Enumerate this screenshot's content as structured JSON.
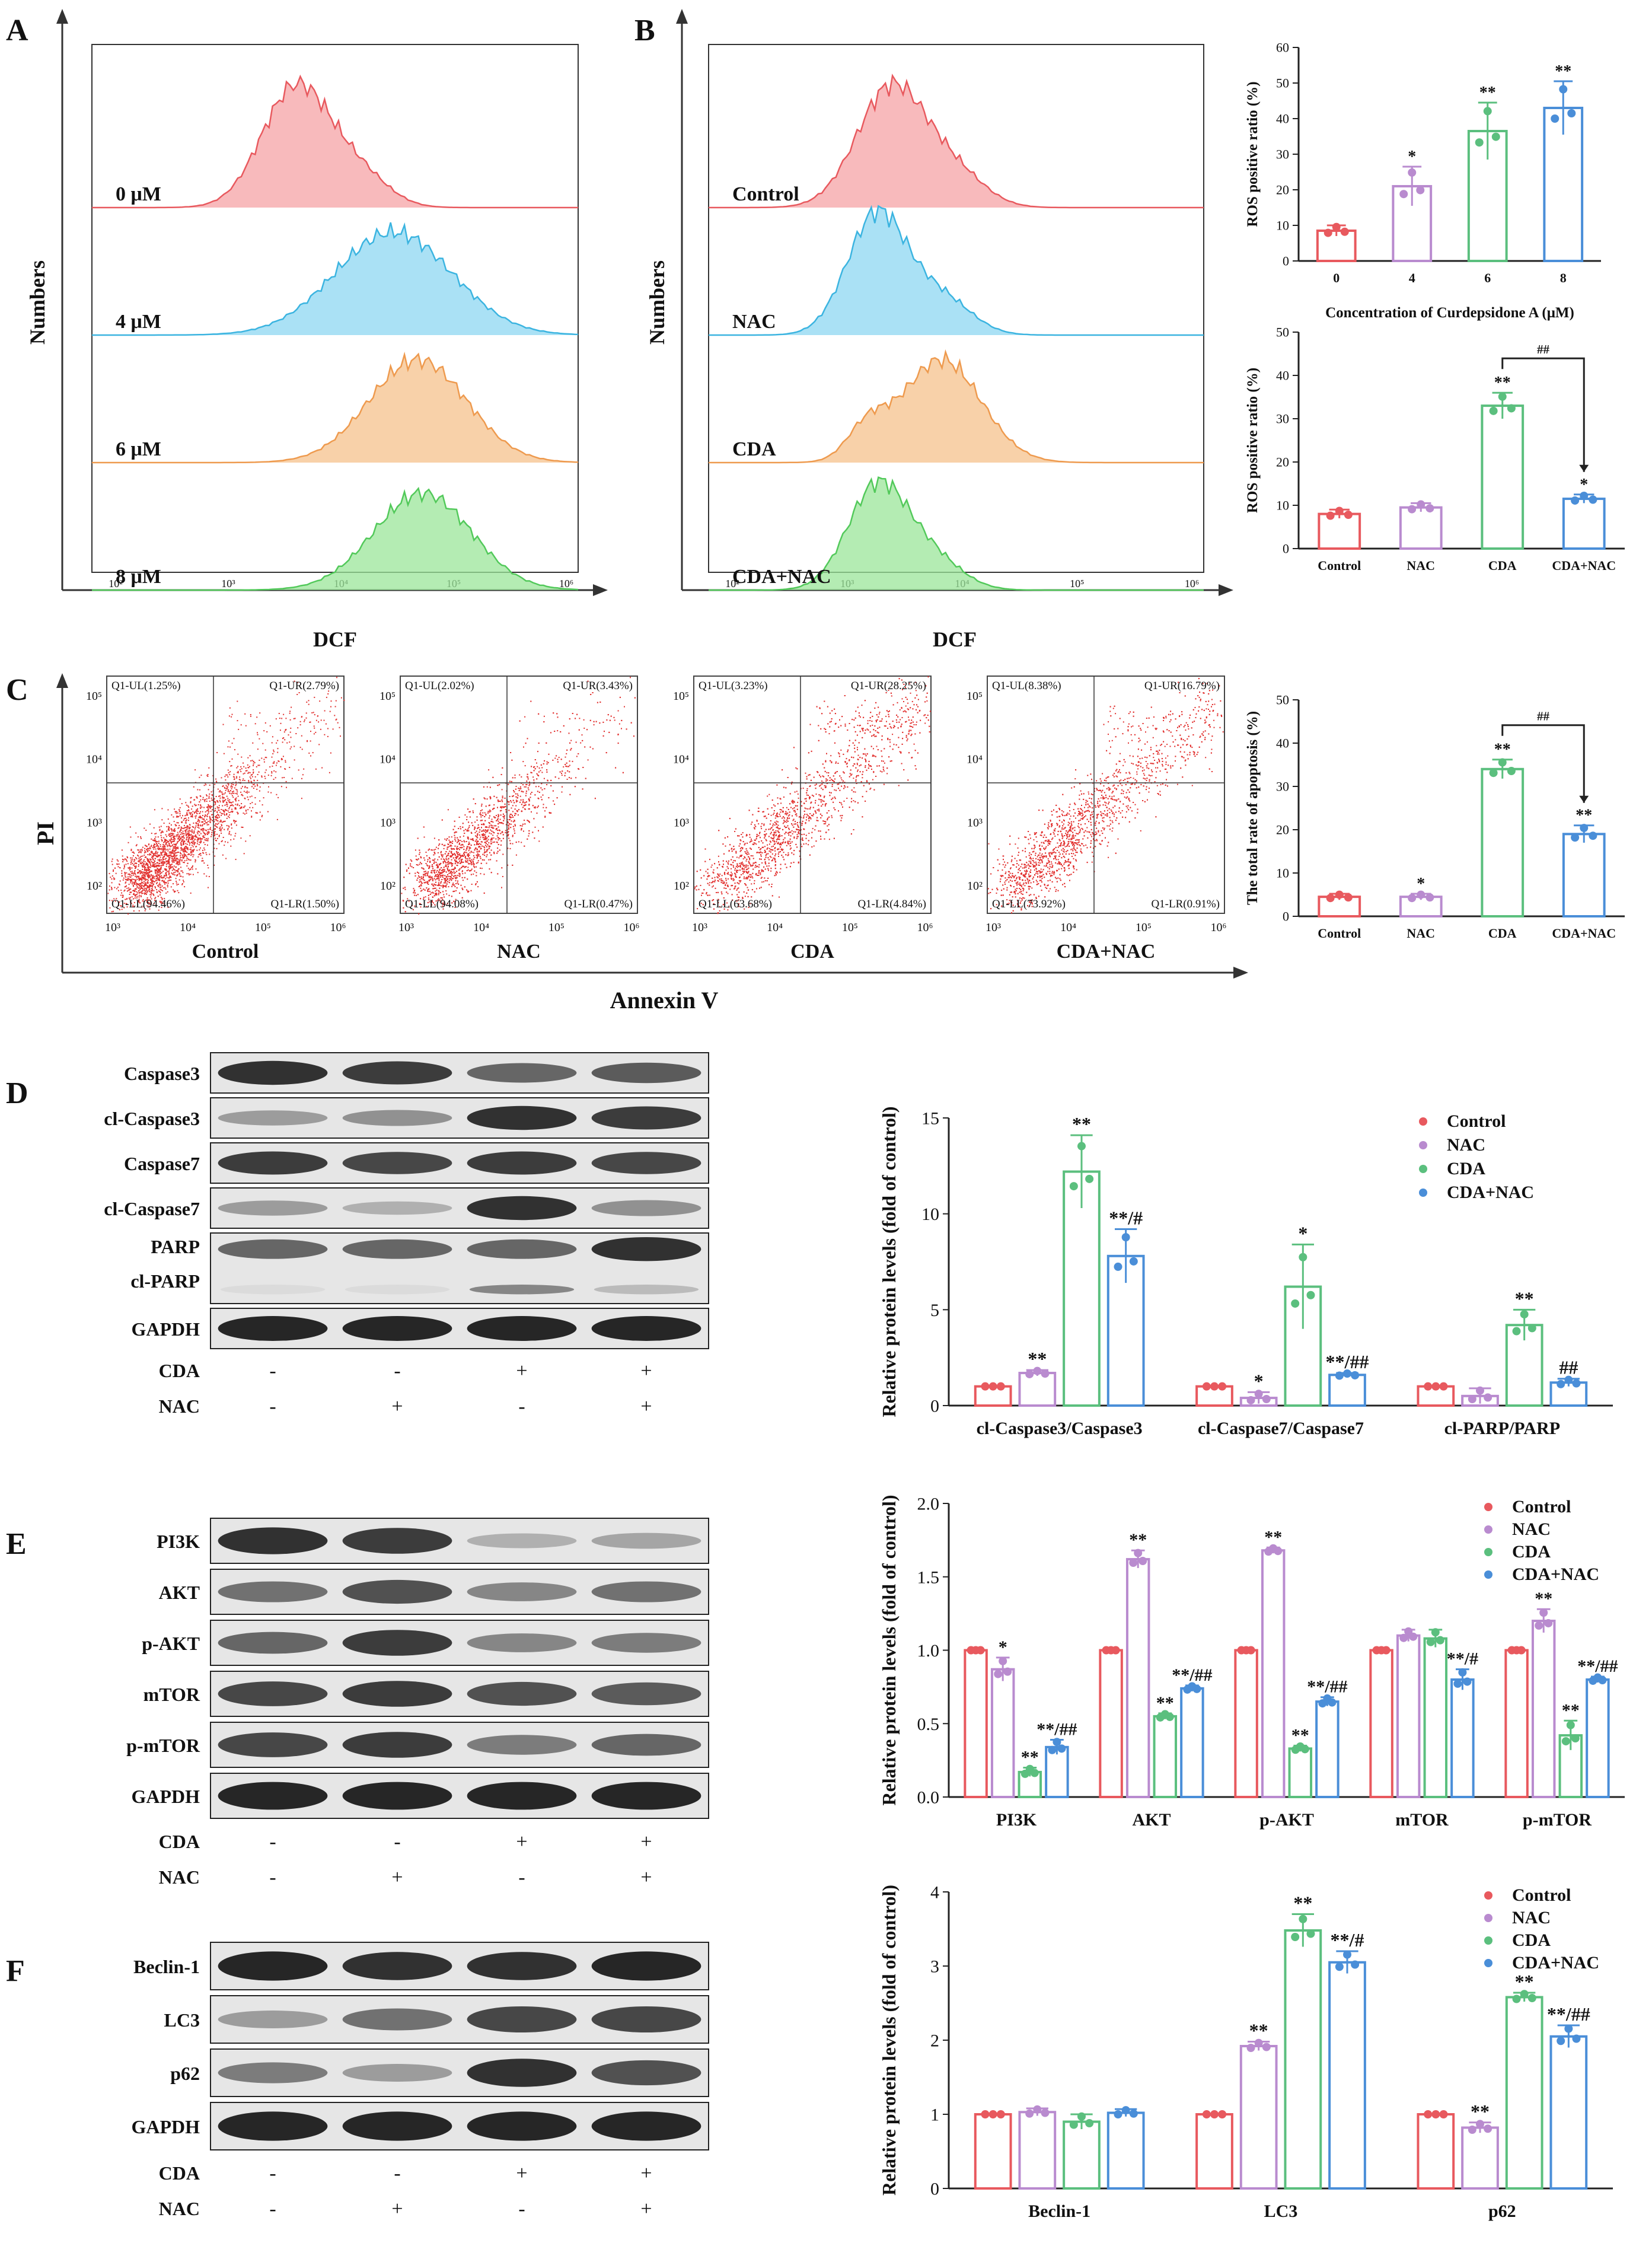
{
  "colors": {
    "control": "#E8595E",
    "nac": "#B98BCF",
    "cda": "#5BBF7E",
    "cdanac": "#4A8ED8",
    "hist": [
      "#F5A3A6",
      "#8ED7F2",
      "#F6C28C",
      "#9BE59A"
    ],
    "histLine": [
      "#E8595E",
      "#3BB4E0",
      "#EE9A4E",
      "#52C95A"
    ],
    "dots": "#E2312F"
  },
  "panels": {
    "A": "A",
    "B": "B",
    "C": "C",
    "D": "D",
    "E": "E",
    "F": "F"
  },
  "histA": {
    "ylabel": "Numbers",
    "xlabel": "DCF",
    "labels": [
      "0 μM",
      "4 μM",
      "6 μM",
      "8 μM"
    ],
    "ticks": [
      "10²",
      "10³",
      "10⁴",
      "10⁵",
      "10⁶"
    ]
  },
  "histB": {
    "ylabel": "Numbers",
    "xlabel": "DCF",
    "labels": [
      "Control",
      "NAC",
      "CDA",
      "CDA+NAC"
    ],
    "ticks": [
      "10²",
      "10³",
      "10⁴",
      "10⁵",
      "10⁶"
    ]
  },
  "flowC": {
    "ylabel": "PI",
    "xlabel": "Annexin V",
    "plots": [
      {
        "name": "Control",
        "ul": "Q1-UL(1.25%)",
        "ur": "Q1-UR(2.79%)",
        "ll": "Q1-LL(94.46%)",
        "lr": "Q1-LR(1.50%)"
      },
      {
        "name": "NAC",
        "ul": "Q1-UL(2.02%)",
        "ur": "Q1-UR(3.43%)",
        "ll": "Q1-LL(94.08%)",
        "lr": "Q1-LR(0.47%)"
      },
      {
        "name": "CDA",
        "ul": "Q1-UL(3.23%)",
        "ur": "Q1-UR(28.25%)",
        "ll": "Q1-LL(63.68%)",
        "lr": "Q1-LR(4.84%)"
      },
      {
        "name": "CDA+NAC",
        "ul": "Q1-UL(8.38%)",
        "ur": "Q1-UR(16.79%)",
        "ll": "Q1-LL(73.92%)",
        "lr": "Q1-LR(0.91%)"
      }
    ],
    "xticks": [
      "10³",
      "10⁴",
      "10⁵",
      "10⁶"
    ],
    "yticks": [
      "10²",
      "10³",
      "10⁴",
      "10⁵"
    ]
  },
  "blots": {
    "D": {
      "rows": [
        "Caspase3",
        "cl-Caspase3",
        "Caspase7",
        "cl-Caspase7",
        "PARP",
        "cl-PARP",
        "GAPDH"
      ],
      "cda": [
        "-",
        "-",
        "+",
        "+"
      ],
      "nac": [
        "-",
        "+",
        "-",
        "+"
      ]
    },
    "E": {
      "rows": [
        "PI3K",
        "AKT",
        "p-AKT",
        "mTOR",
        "p-mTOR",
        "GAPDH"
      ],
      "cda": [
        "-",
        "-",
        "+",
        "+"
      ],
      "nac": [
        "-",
        "+",
        "-",
        "+"
      ]
    },
    "F": {
      "rows": [
        "Beclin-1",
        "LC3",
        "p62",
        "GAPDH"
      ],
      "cda": [
        "-",
        "-",
        "+",
        "+"
      ],
      "nac": [
        "-",
        "+",
        "-",
        "+"
      ]
    },
    "cdaLabel": "CDA",
    "nacLabel": "NAC"
  },
  "chart_data": [
    {
      "id": "B1",
      "type": "bar",
      "ylabel": "ROS positive ratio (%)",
      "xlabel": "Concentration of Curdepsidone A (μM)",
      "categories": [
        "0",
        "4",
        "6",
        "8"
      ],
      "values": [
        8.5,
        21,
        36.5,
        43
      ],
      "errors": [
        1.5,
        5.5,
        8,
        7.5
      ],
      "stars": [
        "",
        "*",
        "**",
        "**"
      ],
      "ylim": [
        0,
        60
      ],
      "yticks": [
        "0",
        "10",
        "20",
        "30",
        "40",
        "50",
        "60"
      ]
    },
    {
      "id": "B2",
      "type": "bar",
      "ylabel": "ROS positive ratio (%)",
      "categories": [
        "Control",
        "NAC",
        "CDA",
        "CDA+NAC"
      ],
      "values": [
        8,
        9.5,
        33,
        11.5
      ],
      "errors": [
        1,
        1,
        3,
        1
      ],
      "stars": [
        "",
        "",
        "**",
        "*"
      ],
      "bracket": "##",
      "ylim": [
        0,
        50
      ],
      "yticks": [
        "0",
        "10",
        "20",
        "30",
        "40",
        "50"
      ]
    },
    {
      "id": "C1",
      "type": "bar",
      "ylabel": "The total rate of apoptosis (%)",
      "categories": [
        "Control",
        "NAC",
        "CDA",
        "CDA+NAC"
      ],
      "values": [
        4.5,
        4.5,
        34,
        19
      ],
      "errors": [
        0.7,
        0.7,
        2.2,
        2
      ],
      "stars": [
        "",
        "*",
        "**",
        "**"
      ],
      "bracket": "##",
      "ylim": [
        0,
        50
      ],
      "yticks": [
        "0",
        "10",
        "20",
        "30",
        "40",
        "50"
      ]
    },
    {
      "id": "D1",
      "type": "bar",
      "ylabel": "Relative protein levels (fold of control)",
      "categories": [
        "cl-Caspase3/Caspase3",
        "cl-Caspase7/Caspase7",
        "cl-PARP/PARP"
      ],
      "series": [
        {
          "name": "Control",
          "values": [
            1,
            1,
            1
          ],
          "errors": [
            0,
            0,
            0
          ],
          "stars": [
            "",
            "",
            ""
          ]
        },
        {
          "name": "NAC",
          "values": [
            1.7,
            0.4,
            0.5
          ],
          "errors": [
            0.15,
            0.3,
            0.4
          ],
          "stars": [
            "**",
            "*",
            ""
          ]
        },
        {
          "name": "CDA",
          "values": [
            12.2,
            6.2,
            4.2
          ],
          "errors": [
            1.9,
            2.2,
            0.8
          ],
          "stars": [
            "**",
            "*",
            "**"
          ]
        },
        {
          "name": "CDA+NAC",
          "values": [
            7.8,
            1.6,
            1.2
          ],
          "errors": [
            1.4,
            0.1,
            0.2
          ],
          "stars": [
            "**/#",
            "**/##",
            "##"
          ]
        }
      ],
      "ylim": [
        0,
        15
      ],
      "yticks": [
        "0",
        "5",
        "10",
        "15"
      ],
      "legend": "top-right"
    },
    {
      "id": "E1",
      "type": "bar",
      "ylabel": "Relative protein levels (fold of control)",
      "categories": [
        "PI3K",
        "AKT",
        "p-AKT",
        "mTOR",
        "p-mTOR"
      ],
      "series": [
        {
          "name": "Control",
          "values": [
            1,
            1,
            1,
            1,
            1
          ],
          "errors": [
            0,
            0,
            0,
            0,
            0
          ],
          "stars": [
            "",
            "",
            "",
            "",
            ""
          ]
        },
        {
          "name": "NAC",
          "values": [
            0.87,
            1.62,
            1.68,
            1.1,
            1.2
          ],
          "errors": [
            0.08,
            0.06,
            0.02,
            0.04,
            0.08
          ],
          "stars": [
            "*",
            "**",
            "**",
            "",
            "**"
          ]
        },
        {
          "name": "CDA",
          "values": [
            0.17,
            0.55,
            0.33,
            1.08,
            0.42
          ],
          "errors": [
            0.03,
            0.02,
            0.02,
            0.06,
            0.1
          ],
          "stars": [
            "**",
            "**",
            "**",
            "",
            "**"
          ]
        },
        {
          "name": "CDA+NAC",
          "values": [
            0.34,
            0.74,
            0.65,
            0.8,
            0.8
          ],
          "errors": [
            0.05,
            0.02,
            0.03,
            0.07,
            0.02
          ],
          "stars": [
            "**/##",
            "**/##",
            "**/##",
            "**/#",
            "**/##"
          ]
        }
      ],
      "ylim": [
        0,
        2.0
      ],
      "yticks": [
        "0.0",
        "0.5",
        "1.0",
        "1.5",
        "2.0"
      ],
      "legend": "top-right"
    },
    {
      "id": "F1",
      "type": "bar",
      "ylabel": "Relative protein levels (fold of control)",
      "categories": [
        "Beclin-1",
        "LC3",
        "p62"
      ],
      "series": [
        {
          "name": "Control",
          "values": [
            1,
            1,
            1
          ],
          "errors": [
            0,
            0,
            0
          ],
          "stars": [
            "",
            "",
            ""
          ]
        },
        {
          "name": "NAC",
          "values": [
            1.03,
            1.92,
            0.82
          ],
          "errors": [
            0.05,
            0.06,
            0.07
          ],
          "stars": [
            "",
            "**",
            "**"
          ]
        },
        {
          "name": "CDA",
          "values": [
            0.9,
            3.48,
            2.58
          ],
          "errors": [
            0.1,
            0.22,
            0.06
          ],
          "stars": [
            "",
            "**",
            "**"
          ]
        },
        {
          "name": "CDA+NAC",
          "values": [
            1.02,
            3.05,
            2.05
          ],
          "errors": [
            0.05,
            0.15,
            0.15
          ],
          "stars": [
            "",
            "**/#",
            "**/##"
          ]
        }
      ],
      "ylim": [
        0,
        4
      ],
      "yticks": [
        "0",
        "1",
        "2",
        "3",
        "4"
      ],
      "legend": "top-right"
    }
  ]
}
